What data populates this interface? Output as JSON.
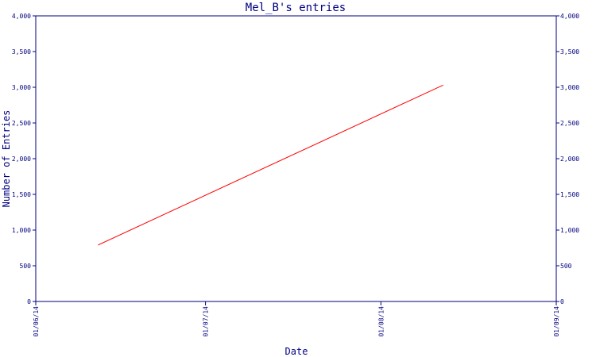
{
  "chart_data": {
    "type": "line",
    "title": "Mel_B's entries",
    "xlabel": "Date",
    "ylabel": "Number of Entries",
    "x_tick_labels": [
      "01/06/14",
      "01/07/14",
      "01/08/14",
      "01/09/14"
    ],
    "x_tick_dates": [
      "2014-06-01",
      "2014-07-01",
      "2014-08-01",
      "2014-09-01"
    ],
    "xlim": [
      "2014-06-01",
      "2014-09-01"
    ],
    "y_ticks": [
      0,
      500,
      1000,
      1500,
      2000,
      2500,
      3000,
      3500,
      4000
    ],
    "y_tick_labels": [
      "0",
      "500",
      "1,000",
      "1,500",
      "2,000",
      "2,500",
      "3,000",
      "3,500",
      "4,000"
    ],
    "ylim": [
      0,
      4000
    ],
    "right_axis_mirrored": true,
    "grid": false,
    "series": [
      {
        "color": "#ff0000",
        "points": [
          {
            "x": "2014-06-12",
            "y": 790
          },
          {
            "x": "2014-08-12",
            "y": 3030
          }
        ]
      }
    ],
    "colors": {
      "axis": "#000080",
      "line": "#ff0000",
      "background": "#ffffff"
    }
  }
}
